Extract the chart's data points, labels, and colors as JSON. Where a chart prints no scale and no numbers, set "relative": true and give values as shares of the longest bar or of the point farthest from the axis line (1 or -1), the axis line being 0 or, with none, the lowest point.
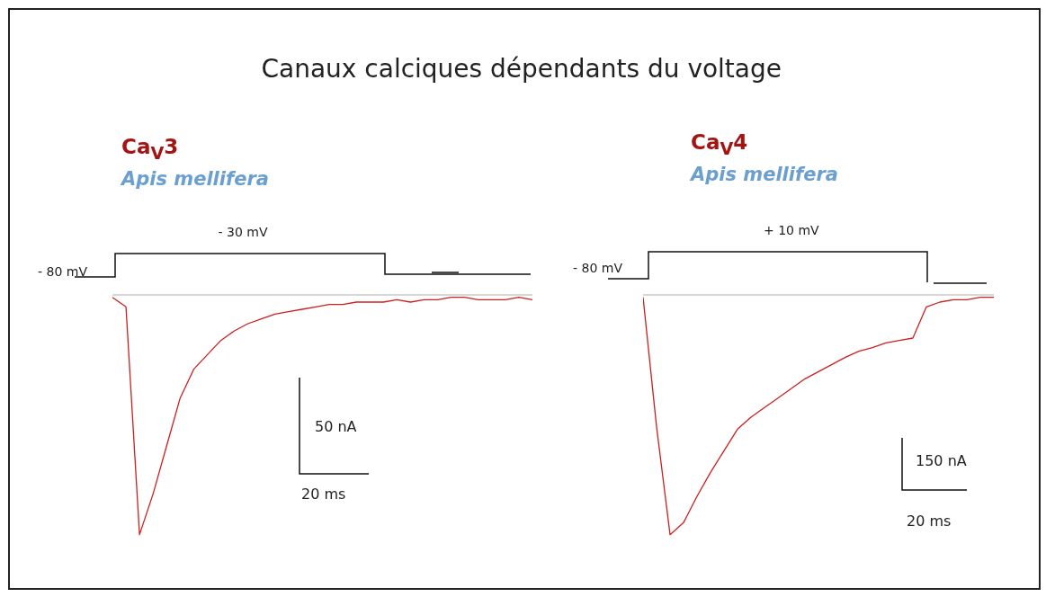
{
  "chart_data": [
    {
      "type": "line",
      "title": "Ca$_{V}$3",
      "subtitle": "Apis mellifera",
      "relative": true,
      "tick_labels": false,
      "annotations": [
        "Canaux calciques dépendants du voltage",
        "- 80 mV",
        "- 30 mV",
        "50 nA",
        "20 ms"
      ],
      "categories": [
        null,
        null,
        null,
        null,
        null,
        null,
        null,
        null,
        null,
        null,
        null,
        null,
        null,
        null,
        null,
        null,
        null,
        null,
        null,
        null,
        null,
        null,
        null,
        null,
        null,
        null,
        null,
        null,
        null,
        null,
        null,
        null
      ],
      "series": [
        {
          "color": "#cc2020",
          "values": [
            -0.01,
            -0.05,
            -1.0,
            -0.83,
            -0.63,
            -0.43,
            -0.31,
            -0.25,
            -0.19,
            -0.15,
            -0.12,
            -0.1,
            -0.08,
            -0.07,
            -0.06,
            -0.05,
            -0.04,
            -0.04,
            -0.03,
            -0.03,
            -0.03,
            -0.02,
            -0.03,
            -0.02,
            -0.02,
            -0.01,
            -0.01,
            -0.02,
            -0.02,
            -0.02,
            -0.01,
            -0.02
          ]
        }
      ],
      "ref_lines": [
        {
          "axis": "y",
          "value": 0,
          "color": "#b0b0b0"
        }
      ]
    },
    {
      "type": "line",
      "title": "Ca$_{V}$4",
      "subtitle": "Apis mellifera",
      "relative": true,
      "tick_labels": false,
      "annotations": [
        "- 80 mV",
        "+ 10 mV",
        "150 nA",
        "20 ms"
      ],
      "categories": [
        null,
        null,
        null,
        null,
        null,
        null,
        null,
        null,
        null,
        null,
        null,
        null,
        null,
        null,
        null,
        null,
        null,
        null,
        null,
        null,
        null,
        null,
        null,
        null,
        null,
        null,
        null
      ],
      "series": [
        {
          "color": "#cc2020",
          "values": [
            -0.01,
            -0.55,
            -1.0,
            -0.95,
            -0.84,
            -0.74,
            -0.65,
            -0.56,
            -0.51,
            -0.47,
            -0.43,
            -0.39,
            -0.35,
            -0.32,
            -0.29,
            -0.26,
            -0.235,
            -0.22,
            -0.2,
            -0.19,
            -0.18,
            -0.05,
            -0.03,
            -0.02,
            -0.02,
            -0.01,
            -0.01
          ]
        }
      ],
      "ref_lines": [
        {
          "axis": "y",
          "value": 0,
          "color": "#b0b0b0"
        }
      ]
    }
  ]
}
